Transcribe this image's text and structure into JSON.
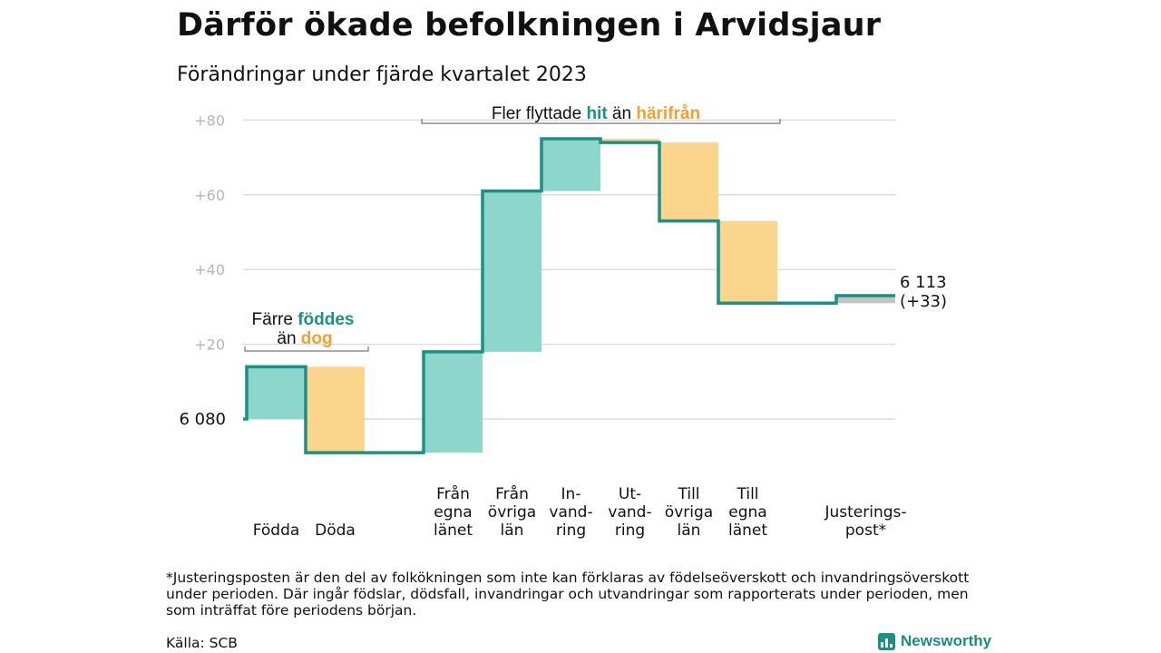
{
  "title": "Därför ökade befolkningen i Arvidsjaur",
  "subtitle": "Förändringar under fjärde kvartalet 2023",
  "colors": {
    "teal": "#1a9184",
    "teal_fill": "#8dd6cb",
    "orange": "#f0a22e",
    "orange_fill": "#fbd58b",
    "gray_fill": "#c4c4c4",
    "grid": "#dcdcdc",
    "tick": "#b5b5b5"
  },
  "chart_data": {
    "type": "waterfall",
    "start_label": "6  080",
    "end_label_line1": "6 113",
    "end_label_line2": "(+33)",
    "y_ticks": [
      {
        "value": 20,
        "label": "+20"
      },
      {
        "value": 40,
        "label": "+40"
      },
      {
        "value": 60,
        "label": "+60"
      },
      {
        "value": 80,
        "label": "+80"
      }
    ],
    "ylim": [
      -10,
      85
    ],
    "steps": [
      {
        "name": "Födda",
        "label_lines": [
          "Födda"
        ],
        "change": 14,
        "color": "teal"
      },
      {
        "name": "Döda",
        "label_lines": [
          "Döda"
        ],
        "change": -23,
        "color": "orange"
      },
      {
        "name": "gap",
        "label_lines": [],
        "change": 0,
        "color": "none"
      },
      {
        "name": "Från egna länet",
        "label_lines": [
          "Från",
          "egna",
          "länet"
        ],
        "change": 27,
        "color": "teal"
      },
      {
        "name": "Från övriga län",
        "label_lines": [
          "Från",
          "övriga",
          "län"
        ],
        "change": 43,
        "color": "teal"
      },
      {
        "name": "Invandring",
        "label_lines": [
          "In-",
          "vand-",
          "ring"
        ],
        "change": 14,
        "color": "teal"
      },
      {
        "name": "Utvandring",
        "label_lines": [
          "Ut-",
          "vand-",
          "ring"
        ],
        "change": -1,
        "color": "orange"
      },
      {
        "name": "Till övriga län",
        "label_lines": [
          "Till",
          "övriga",
          "län"
        ],
        "change": -21,
        "color": "orange"
      },
      {
        "name": "Till egna länet",
        "label_lines": [
          "Till",
          "egna",
          "länet"
        ],
        "change": -22,
        "color": "orange"
      },
      {
        "name": "gap",
        "label_lines": [],
        "change": 0,
        "color": "none"
      },
      {
        "name": "Justeringspost*",
        "label_lines": [
          "Justerings-",
          "post*"
        ],
        "change": 2,
        "color": "gray"
      }
    ],
    "annotations": {
      "births": {
        "part1": "Färre",
        "part2": "föddes",
        "part3": "än",
        "part4": "dog"
      },
      "migration": {
        "part1": "Fler flyttade",
        "part2": "hit",
        "part3": "än",
        "part4": "härifrån"
      }
    }
  },
  "footnote": "*Justeringsposten är den del av folkökningen som inte kan förklaras av födelseöverskott och invandringsöverskott under perioden. Där ingår födslar, dödsfall, invandringar och utvandringar som rapporterats under perioden, men som inträffat före periodens början.",
  "source": "Källa: SCB",
  "logo_text": "Newsworthy"
}
